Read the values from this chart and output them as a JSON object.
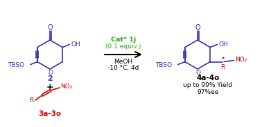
{
  "bg_color": "#ffffff",
  "blue_color": "#3030bb",
  "red_color": "#cc0000",
  "green_color": "#22aa00",
  "black_color": "#000000",
  "cat_line1": "Cat* 1j",
  "cat_line2": "(0.1 equiv.)",
  "solvent": "MeOH",
  "conditions": "-10 °C, 4d",
  "label_reactant1": "2",
  "label_reactant2": "3a-3o",
  "label_product": "4a-4o",
  "yield_text": "up to 99% Yield",
  "ee_text": "97%ee",
  "figwidth": 3.78,
  "figheight": 1.84,
  "dpi": 100
}
